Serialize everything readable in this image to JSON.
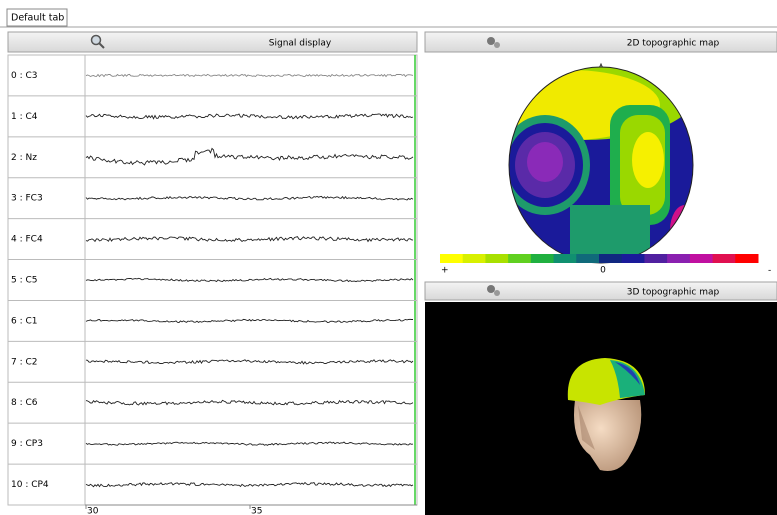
{
  "tab": {
    "label": "Default tab"
  },
  "signal_display": {
    "title": "Signal display",
    "channels": [
      "0 : C3",
      "1 : C4",
      "2 : Nz",
      "3 : FC3",
      "4 : FC4",
      "5 : C5",
      "6 : C1",
      "7 : C2",
      "8 : C6",
      "9 : CP3",
      "10 : CP4"
    ],
    "time_ticks": [
      "30",
      "35"
    ]
  },
  "topo_2d": {
    "title": "2D topographic map",
    "scale_labels": [
      "+",
      "0",
      "-"
    ]
  },
  "topo_3d": {
    "title": "3D topographic map"
  }
}
